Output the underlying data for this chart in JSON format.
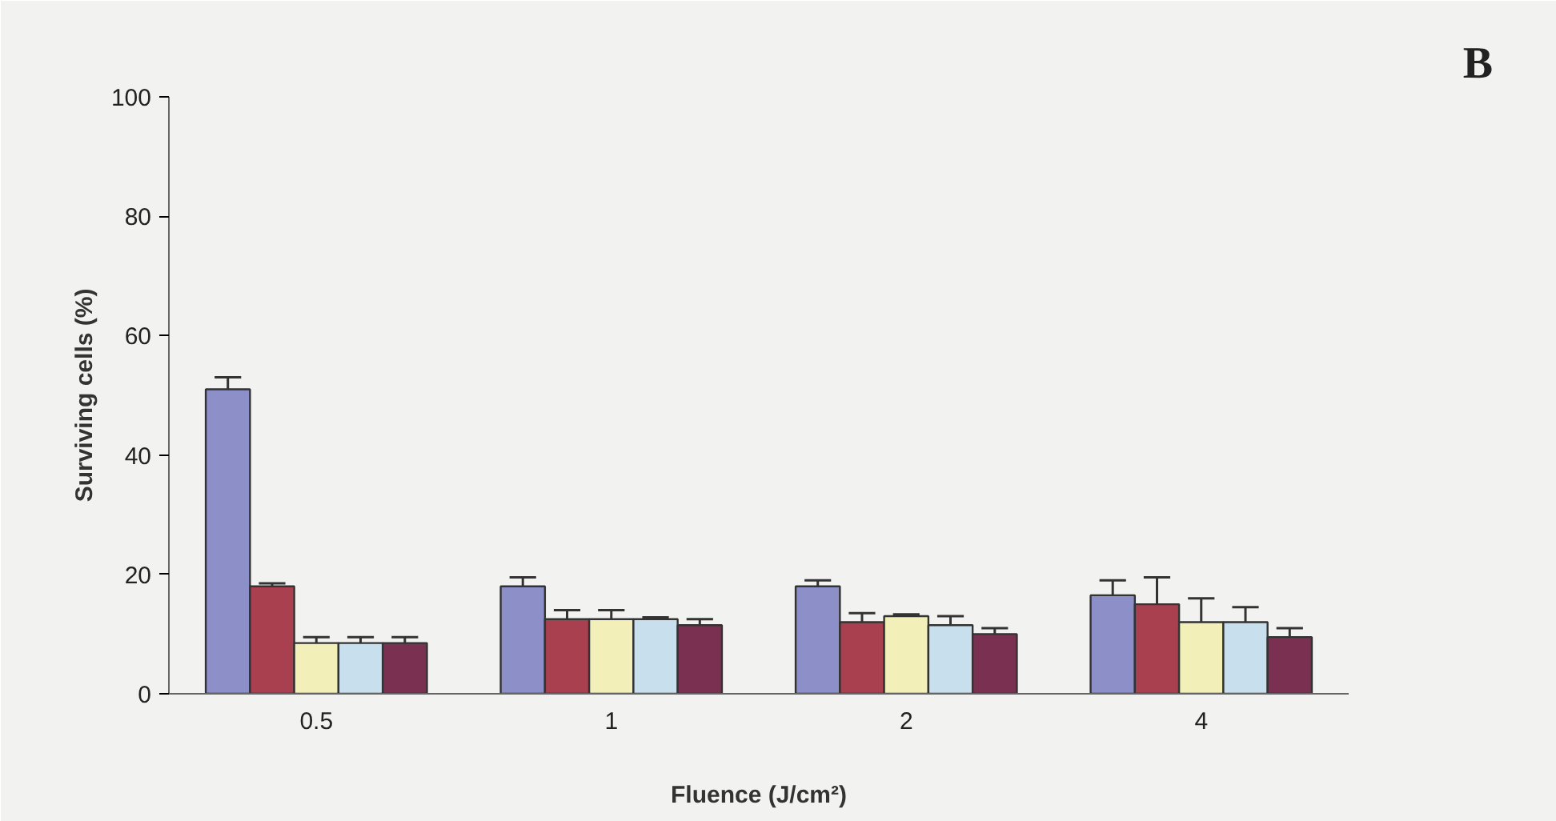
{
  "chart_data": {
    "type": "bar",
    "xlabel": "Fluence (J/cm²)",
    "ylabel": "Surviving cells (%)",
    "categories": [
      "0.5",
      "1",
      "2",
      "4"
    ],
    "ylim": [
      0,
      100
    ],
    "yticks": [
      0,
      20,
      40,
      60,
      80,
      100
    ],
    "grid": false,
    "series": [
      {
        "color": "#8c8fc8",
        "values": [
          51,
          18,
          18,
          16.5
        ],
        "errors": [
          [
            51,
            53
          ],
          [
            18,
            19.5
          ],
          [
            18,
            19
          ],
          [
            16.5,
            19
          ]
        ]
      },
      {
        "color": "#a8404f",
        "values": [
          18,
          12.5,
          12,
          15
        ],
        "errors": [
          [
            18,
            18.5
          ],
          [
            12.5,
            14
          ],
          [
            12,
            13.5
          ],
          [
            15,
            19.5
          ]
        ]
      },
      {
        "color": "#f2f0b8",
        "values": [
          8.5,
          12.5,
          13,
          12
        ],
        "errors": [
          [
            8.5,
            9.5
          ],
          [
            12.5,
            14
          ],
          [
            13,
            13.3
          ],
          [
            12,
            16
          ]
        ]
      },
      {
        "color": "#c8e0ee",
        "values": [
          8.5,
          12.5,
          11.5,
          12
        ],
        "errors": [
          [
            8.5,
            9.5
          ],
          [
            12.5,
            12.8
          ],
          [
            11.5,
            13
          ],
          [
            12,
            14.5
          ]
        ]
      },
      {
        "color": "#7a3050",
        "values": [
          8.5,
          11.5,
          10,
          9.5
        ],
        "errors": [
          [
            8.5,
            9.5
          ],
          [
            11.5,
            12.5
          ],
          [
            10,
            11
          ],
          [
            9.5,
            11
          ]
        ]
      }
    ],
    "annotations": [
      "B"
    ]
  }
}
